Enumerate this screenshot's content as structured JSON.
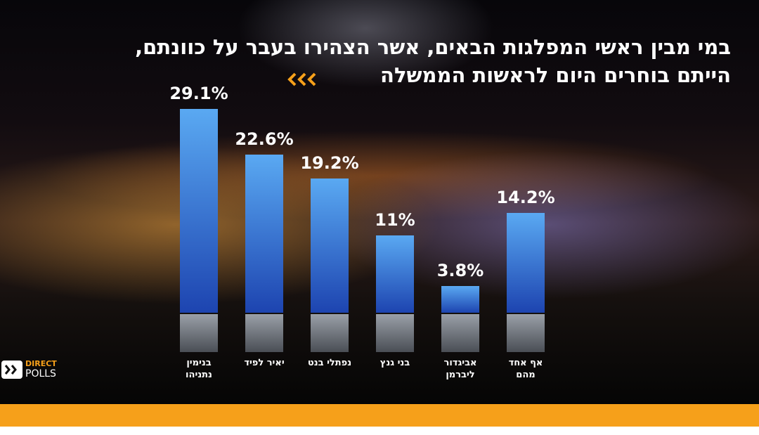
{
  "chart_data": {
    "type": "bar",
    "title": [
      "במי מבין ראשי המפלגות הבאים, אשר הצהירו בעבר על כוונתם,",
      "הייתם בוחרים היום לראשות הממשלה"
    ],
    "categories": [
      "בנימין נתניהו",
      "יאיר לפיד",
      "נפתלי בנט",
      "בני גנץ",
      "אביגדור ליברמן",
      "אף אחד מהם"
    ],
    "values": [
      29.1,
      22.6,
      19.2,
      11,
      3.8,
      14.2
    ],
    "value_labels": [
      "29.1%",
      "22.6%",
      "19.2%",
      "11%",
      "3.8%",
      "14.2%"
    ],
    "color": [
      "#5aa9f2",
      "#1d44b0"
    ]
  },
  "logo": {
    "line1": "DIRECT",
    "line2": "POLLS"
  }
}
